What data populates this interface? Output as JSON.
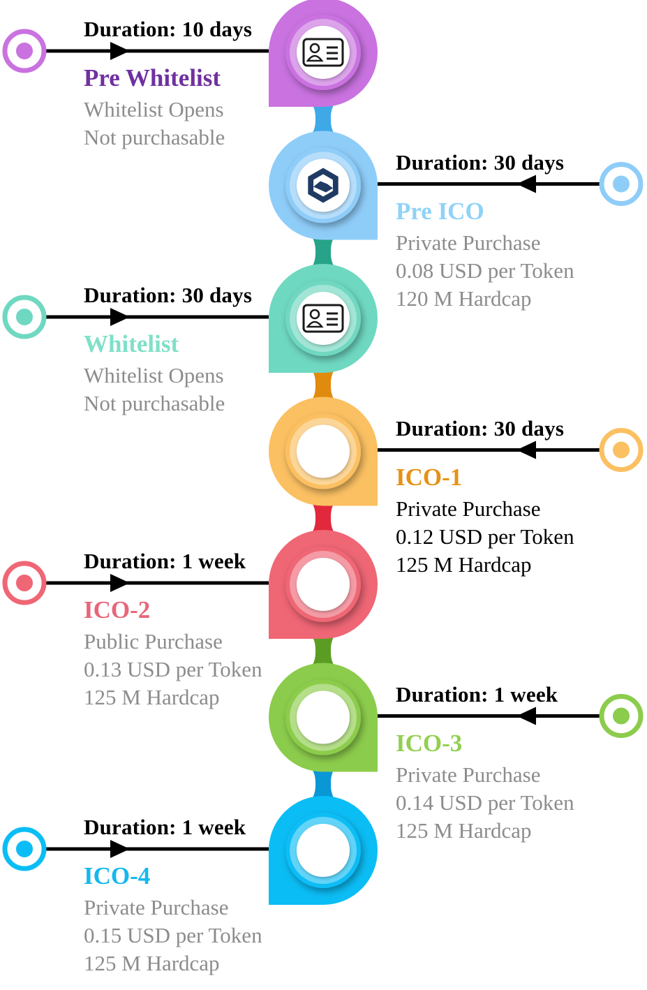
{
  "stages": [
    {
      "duration": "Duration: 10 days",
      "title": "Pre Whitelist",
      "lines": [
        "Whitelist Opens",
        "Not purchasable"
      ],
      "side": "left",
      "icon": "id-card-icon",
      "color": "#c972e0",
      "color_dark": "#7a2fa0",
      "title_color": "#7030a0",
      "text_color": "#8c8c8c"
    },
    {
      "duration": "Duration: 30 days",
      "title": "Pre ICO",
      "lines": [
        "Private Purchase",
        "0.08 USD per Token",
        "120 M Hardcap"
      ],
      "side": "right",
      "icon": "handshake-hexagon-icon",
      "color": "#8fcdf9",
      "color_dark": "#3fa9e8",
      "title_color": "#8fd2f7",
      "text_color": "#8c8c8c"
    },
    {
      "duration": "Duration: 30 days",
      "title": "Whitelist",
      "lines": [
        "Whitelist Opens",
        "Not purchasable"
      ],
      "side": "left",
      "icon": "id-card-icon",
      "color": "#6fd8c1",
      "color_dark": "#26a389",
      "title_color": "#7fe0c8",
      "text_color": "#8c8c8c"
    },
    {
      "duration": "Duration: 30 days",
      "title": "ICO-1",
      "lines": [
        "Private Purchase",
        "0.12 USD per Token",
        "125 M Hardcap"
      ],
      "side": "right",
      "icon": "",
      "color": "#fbc062",
      "color_dark": "#e08a0e",
      "title_color": "#e69215",
      "text_color": "#000000"
    },
    {
      "duration": "Duration: 1 week",
      "title": "ICO-2",
      "lines": [
        "Public Purchase",
        "0.13 USD per Token",
        "125 M Hardcap"
      ],
      "side": "left",
      "icon": "",
      "color": "#ef6675",
      "color_dark": "#e2283c",
      "title_color": "#e8667a",
      "text_color": "#8c8c8c"
    },
    {
      "duration": "Duration: 1 week",
      "title": "ICO-3",
      "lines": [
        "Private Purchase",
        "0.14 USD per Token",
        "125 M Hardcap"
      ],
      "side": "right",
      "icon": "",
      "color": "#8ccc4c",
      "color_dark": "#5b9d23",
      "title_color": "#92d050",
      "text_color": "#8c8c8c"
    },
    {
      "duration": "Duration: 1 week",
      "title": "ICO-4",
      "lines": [
        "Private Purchase",
        "0.15 USD per Token",
        "125 M Hardcap"
      ],
      "side": "left",
      "icon": "",
      "color": "#0bbdf5",
      "color_dark": "#0a97d6",
      "title_color": "#14b8ef",
      "text_color": "#8c8c8c"
    }
  ]
}
